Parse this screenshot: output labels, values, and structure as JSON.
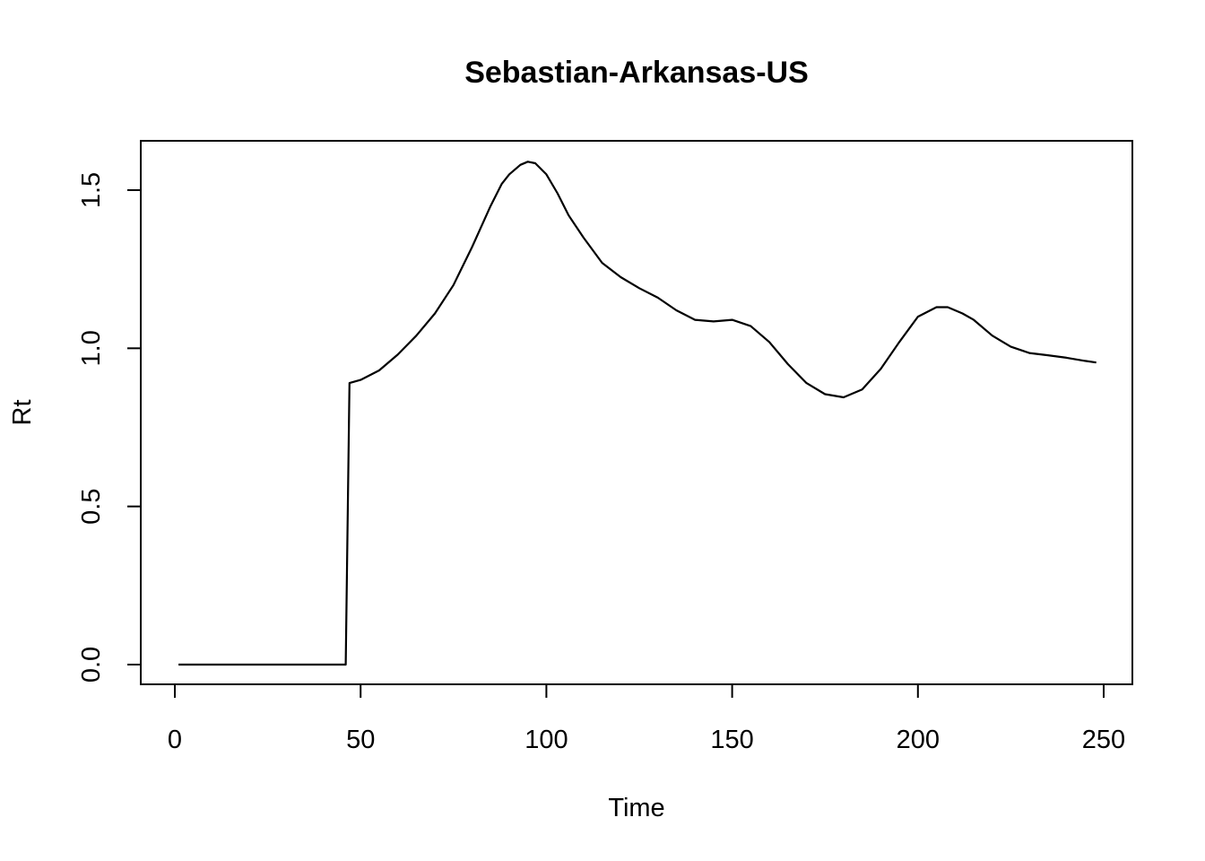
{
  "chart_data": {
    "type": "line",
    "title": "Sebastian-Arkansas-US",
    "xlabel": "Time",
    "ylabel": "Rt",
    "xlim": [
      1,
      248
    ],
    "ylim": [
      0,
      1.6
    ],
    "x_ticks": [
      0,
      50,
      100,
      150,
      200,
      250
    ],
    "x_tick_labels": [
      "0",
      "50",
      "100",
      "150",
      "200",
      "250"
    ],
    "y_ticks": [
      0,
      0.5,
      1,
      1.5
    ],
    "y_tick_labels": [
      "0.0",
      "0.5",
      "1.0",
      "1.5"
    ],
    "grid": false,
    "series": [
      {
        "x": [
          1,
          10,
          20,
          30,
          40,
          46,
          47,
          50,
          55,
          60,
          65,
          70,
          75,
          80,
          85,
          88,
          90,
          93,
          95,
          97,
          100,
          103,
          106,
          110,
          115,
          120,
          125,
          130,
          135,
          140,
          145,
          150,
          155,
          160,
          165,
          170,
          175,
          180,
          185,
          190,
          195,
          200,
          205,
          208,
          212,
          215,
          220,
          225,
          230,
          235,
          240,
          245,
          248
        ],
        "y": [
          0,
          0,
          0,
          0,
          0,
          0,
          0.89,
          0.9,
          0.93,
          0.98,
          1.04,
          1.11,
          1.2,
          1.32,
          1.45,
          1.52,
          1.55,
          1.58,
          1.59,
          1.585,
          1.55,
          1.49,
          1.42,
          1.35,
          1.27,
          1.225,
          1.19,
          1.16,
          1.12,
          1.09,
          1.085,
          1.09,
          1.07,
          1.02,
          0.95,
          0.89,
          0.855,
          0.845,
          0.87,
          0.935,
          1.02,
          1.1,
          1.13,
          1.13,
          1.11,
          1.09,
          1.04,
          1.005,
          0.985,
          0.978,
          0.97,
          0.96,
          0.955
        ]
      }
    ]
  }
}
